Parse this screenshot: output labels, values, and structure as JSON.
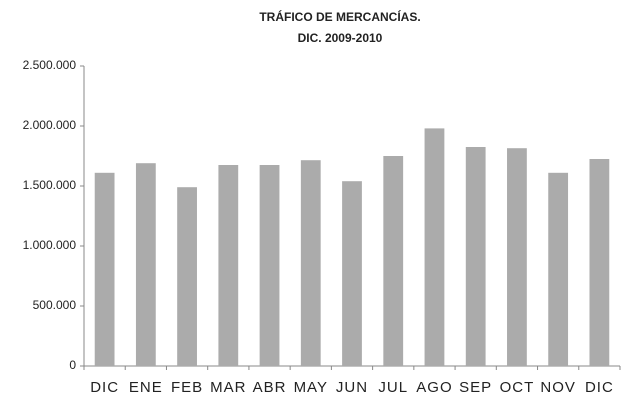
{
  "chart_data": {
    "type": "bar",
    "title": "TRÁFICO DE MERCANCÍAS.",
    "subtitle": "DIC. 2009-2010",
    "categories": [
      "DIC",
      "ENE",
      "FEB",
      "MAR",
      "ABR",
      "MAY",
      "JUN",
      "JUL",
      "AGO",
      "SEP",
      "OCT",
      "NOV",
      "DIC"
    ],
    "values": [
      1610000,
      1690000,
      1490000,
      1675000,
      1675000,
      1715000,
      1540000,
      1750000,
      1980000,
      1825000,
      1815000,
      1610000,
      1725000
    ],
    "color": "#ababab",
    "ylim": [
      0,
      2500000
    ],
    "yticks": [
      0,
      {
        "value": 500000,
        "label": "500.000"
      },
      {
        "value": 1000000,
        "label": "1.000.000"
      },
      {
        "value": 1500000,
        "label": "1.500.000"
      },
      {
        "value": 2000000,
        "label": "2.000.000"
      },
      {
        "value": 2500000,
        "label": "2.500.000"
      }
    ],
    "grid": false
  }
}
